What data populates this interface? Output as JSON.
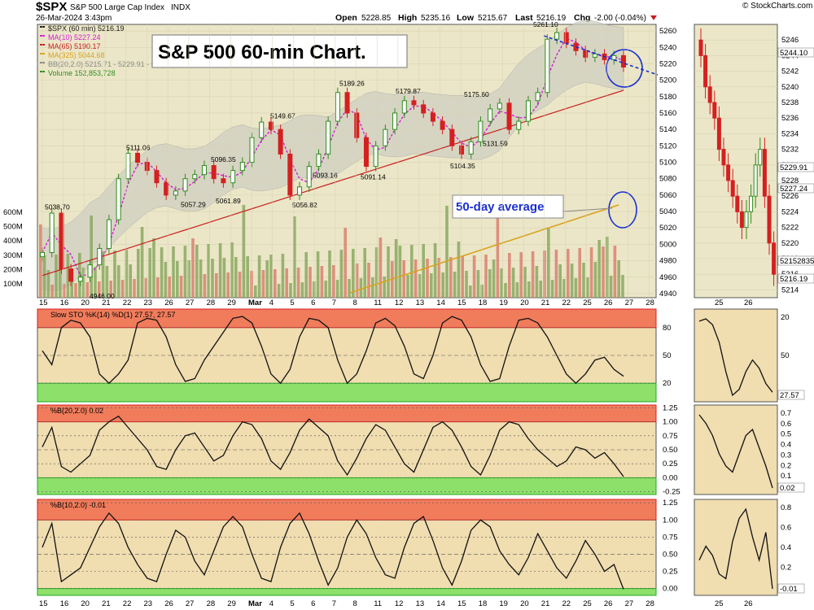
{
  "header": {
    "symbol": "$SPX",
    "name": "S&P 500 Large Cap Index",
    "exchange": "INDX",
    "date": "26-Mar-2024 3:43pm",
    "open_label": "Open",
    "open": "5228.85",
    "high_label": "High",
    "high": "5235.16",
    "low_label": "Low",
    "low": "5215.67",
    "last_label": "Last",
    "last": "5216.19",
    "chg_label": "Chg",
    "chg": "-2.00 (-0.04%)",
    "copyright": "© StockCharts.com"
  },
  "annotations": {
    "title_box": "S&P 500 60-min Chart.",
    "avg_label": "50-day average"
  },
  "legend": [
    {
      "text": "$SPX (60 min) 5216.19",
      "color": "#1a1a1a"
    },
    {
      "text": "MA(10) 5227.24",
      "color": "#d61ad6"
    },
    {
      "text": "MA(65) 5190.17",
      "color": "#c81e1e"
    },
    {
      "text": "MA(325) 5044.68",
      "color": "#d9a21e"
    },
    {
      "text": "BB(20,2.0) 5215.71 - 5229.91 - 5244.10",
      "color": "#8a8a8a"
    },
    {
      "text": "Volume 152,853,728",
      "color": "#2e8b1e"
    }
  ],
  "colors": {
    "price_bg": "#ebe6c7",
    "band_fill": "#cfd0c2",
    "up": "#2e8b1e",
    "down": "#d42020",
    "upper_zone": "#f07c5c",
    "lower_zone": "#8de06a",
    "ind_bg": "#f0ddb0"
  },
  "chart_data": [
    {
      "type": "candlestick",
      "title": "S&P 500 60-min Chart.",
      "x_tick_labels": [
        "15",
        "16",
        "20",
        "21",
        "22",
        "23",
        "26",
        "27",
        "28",
        "29",
        "Mar",
        "4",
        "5",
        "6",
        "7",
        "8",
        "11",
        "12",
        "13",
        "14",
        "15",
        "18",
        "19",
        "20",
        "21",
        "22",
        "25",
        "26",
        "27",
        "28"
      ],
      "y_tick_labels": [
        "4940",
        "4960",
        "4980",
        "5000",
        "5020",
        "5040",
        "5060",
        "5080",
        "5100",
        "5120",
        "5140",
        "5160",
        "5180",
        "5200",
        "5220",
        "5240",
        "5260"
      ],
      "ylim": [
        4935,
        5268
      ],
      "volume_tick_labels": [
        "100M",
        "200M",
        "300M",
        "400M",
        "500M",
        "600M"
      ],
      "price_labels": [
        {
          "text": "5038.70",
          "value": 5038.7
        },
        {
          "text": "4946.00",
          "value": 4946.0
        },
        {
          "text": "5111.06",
          "value": 5111.06
        },
        {
          "text": "5057.29",
          "value": 5057.29
        },
        {
          "text": "5096.35",
          "value": 5096.35
        },
        {
          "text": "5061.89",
          "value": 5061.89
        },
        {
          "text": "5149.67",
          "value": 5149.67
        },
        {
          "text": "5056.82",
          "value": 5056.82
        },
        {
          "text": "5093.16",
          "value": 5093.16
        },
        {
          "text": "5189.26",
          "value": 5189.26
        },
        {
          "text": "5091.14",
          "value": 5091.14
        },
        {
          "text": "5179.87",
          "value": 5179.87
        },
        {
          "text": "5104.35",
          "value": 5104.35
        },
        {
          "text": "5175.60",
          "value": 5175.6
        },
        {
          "text": "5131.59",
          "value": 5131.59
        },
        {
          "text": "5261.10",
          "value": 5261.1
        }
      ],
      "close_series": [
        [
          0,
          4990
        ],
        [
          1,
          5038
        ],
        [
          2,
          4970
        ],
        [
          3,
          4955
        ],
        [
          4,
          4960
        ],
        [
          5,
          4975
        ],
        [
          6,
          4995
        ],
        [
          7,
          5030
        ],
        [
          8,
          5080
        ],
        [
          9,
          5111
        ],
        [
          10,
          5100
        ],
        [
          11,
          5090
        ],
        [
          12,
          5075
        ],
        [
          13,
          5060
        ],
        [
          14,
          5065
        ],
        [
          15,
          5080
        ],
        [
          16,
          5085
        ],
        [
          17,
          5096
        ],
        [
          18,
          5080
        ],
        [
          19,
          5075
        ],
        [
          20,
          5090
        ],
        [
          21,
          5100
        ],
        [
          22,
          5130
        ],
        [
          23,
          5149
        ],
        [
          24,
          5140
        ],
        [
          25,
          5110
        ],
        [
          26,
          5060
        ],
        [
          27,
          5070
        ],
        [
          28,
          5095
        ],
        [
          29,
          5110
        ],
        [
          30,
          5150
        ],
        [
          31,
          5185
        ],
        [
          32,
          5160
        ],
        [
          33,
          5130
        ],
        [
          34,
          5095
        ],
        [
          35,
          5120
        ],
        [
          36,
          5140
        ],
        [
          37,
          5160
        ],
        [
          38,
          5175
        ],
        [
          39,
          5170
        ],
        [
          40,
          5160
        ],
        [
          41,
          5150
        ],
        [
          42,
          5140
        ],
        [
          43,
          5120
        ],
        [
          44,
          5110
        ],
        [
          45,
          5125
        ],
        [
          46,
          5150
        ],
        [
          47,
          5165
        ],
        [
          48,
          5172
        ],
        [
          49,
          5140
        ],
        [
          50,
          5150
        ],
        [
          51,
          5175
        ],
        [
          52,
          5185
        ],
        [
          53,
          5250
        ],
        [
          54,
          5258
        ],
        [
          55,
          5245
        ],
        [
          56,
          5236
        ],
        [
          57,
          5228
        ],
        [
          58,
          5232
        ],
        [
          59,
          5225
        ],
        [
          60,
          5230
        ],
        [
          61,
          5216
        ]
      ]
    },
    {
      "type": "line",
      "title": "Slow STO %K(14) %D(1) 27.57, 27.57",
      "ylim": [
        0,
        100
      ],
      "y_ticks": [
        20,
        50,
        80
      ],
      "current": "27.57",
      "values": [
        55,
        40,
        80,
        88,
        85,
        70,
        30,
        20,
        30,
        45,
        85,
        90,
        88,
        70,
        40,
        22,
        25,
        45,
        60,
        75,
        90,
        92,
        85,
        60,
        30,
        20,
        35,
        70,
        90,
        88,
        80,
        45,
        20,
        30,
        55,
        85,
        90,
        82,
        60,
        30,
        25,
        50,
        85,
        92,
        88,
        70,
        40,
        22,
        25,
        60,
        88,
        90,
        85,
        70,
        50,
        30,
        20,
        30,
        45,
        48,
        35,
        27.57
      ]
    },
    {
      "type": "line",
      "title": "%B(20,2.0) 0.02",
      "ylim": [
        -0.3,
        1.3
      ],
      "y_ticks": [
        -0.25,
        0,
        0.25,
        0.5,
        0.75,
        1.0,
        1.25
      ],
      "current": "0.02",
      "values": [
        0.55,
        0.9,
        0.2,
        0.1,
        0.25,
        0.4,
        0.85,
        1.0,
        1.1,
        0.9,
        0.7,
        0.5,
        0.2,
        0.15,
        0.5,
        0.75,
        0.8,
        0.55,
        0.3,
        0.4,
        0.75,
        1.0,
        0.95,
        0.7,
        0.3,
        0.15,
        0.45,
        0.85,
        1.05,
        0.9,
        0.75,
        0.3,
        0.05,
        0.35,
        0.7,
        0.95,
        0.85,
        0.55,
        0.25,
        0.1,
        0.5,
        0.9,
        1.0,
        0.85,
        0.55,
        0.2,
        0.05,
        0.4,
        0.85,
        1.0,
        0.95,
        0.7,
        0.5,
        0.35,
        0.2,
        0.3,
        0.55,
        0.5,
        0.35,
        0.45,
        0.25,
        0.02
      ]
    },
    {
      "type": "line",
      "title": "%B(10,2.0) -0.01",
      "ylim": [
        -0.1,
        1.3
      ],
      "y_ticks": [
        0,
        0.25,
        0.5,
        0.75,
        1.0,
        1.25
      ],
      "current": "-0.01",
      "values": [
        0.6,
        0.95,
        0.1,
        0.2,
        0.3,
        0.6,
        0.9,
        1.1,
        0.95,
        0.6,
        0.35,
        0.15,
        0.1,
        0.5,
        0.85,
        0.75,
        0.4,
        0.2,
        0.55,
        0.9,
        1.05,
        0.9,
        0.5,
        0.15,
        0.1,
        0.6,
        0.95,
        1.1,
        0.8,
        0.4,
        0.05,
        0.3,
        0.75,
        1.0,
        0.8,
        0.45,
        0.2,
        0.15,
        0.6,
        0.95,
        1.05,
        0.7,
        0.3,
        0.05,
        0.4,
        0.85,
        1.0,
        0.9,
        0.55,
        0.35,
        0.2,
        0.45,
        0.8,
        0.55,
        0.3,
        0.15,
        0.4,
        0.7,
        0.5,
        0.25,
        0.35,
        -0.01
      ]
    },
    {
      "type": "candlestick",
      "title": "zoom",
      "x_tick_labels": [
        "25",
        "26"
      ],
      "y_tick_labels": [
        "5214",
        "5216",
        "5218",
        "5220",
        "5222",
        "5224",
        "5226",
        "5228",
        "5230",
        "5232",
        "5234",
        "5236",
        "5238",
        "5240",
        "5242",
        "5244",
        "5246"
      ],
      "ylim": [
        5213,
        5248
      ],
      "price_tags": [
        "5244.10",
        "5229.91",
        "5227.24",
        "5215283537",
        "5216.19"
      ],
      "values": [
        5244,
        5240,
        5238,
        5236,
        5232,
        5230,
        5228,
        5226,
        5224,
        5222,
        5224,
        5226,
        5230,
        5232,
        5226,
        5220,
        5216
      ]
    },
    {
      "type": "line",
      "title": "zoom-sto",
      "y_tick_labels": [
        "20",
        "50",
        "80"
      ],
      "current": "27.57",
      "values": [
        88,
        90,
        85,
        70,
        45,
        25,
        30,
        45,
        55,
        48,
        35,
        27.57
      ]
    },
    {
      "type": "line",
      "title": "zoom-pctb20",
      "y_tick_labels": [
        "0.7",
        "0.6",
        "0.5",
        "0.4",
        "0.3",
        "0.2",
        "0.1",
        "0.0"
      ],
      "current": "0.02",
      "values": [
        0.62,
        0.55,
        0.45,
        0.3,
        0.2,
        0.15,
        0.3,
        0.45,
        0.5,
        0.35,
        0.2,
        0.02
      ]
    },
    {
      "type": "line",
      "title": "zoom-pctb10",
      "y_tick_labels": [
        "0.8",
        "0.6",
        "0.4",
        "0.2",
        "0.0"
      ],
      "current": "-0.01",
      "values": [
        0.3,
        0.45,
        0.35,
        0.15,
        0.1,
        0.5,
        0.75,
        0.85,
        0.55,
        0.3,
        0.6,
        -0.01
      ]
    }
  ]
}
